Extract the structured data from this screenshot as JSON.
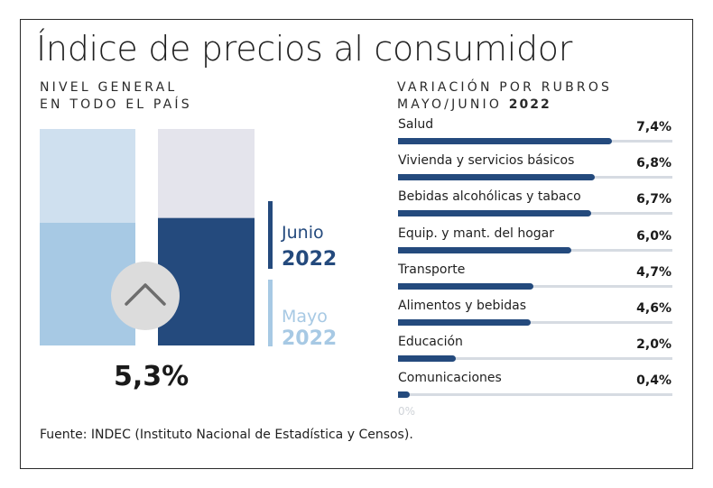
{
  "title": "Índice de precios al consumidor",
  "left_subtitle": [
    "NIVEL GENERAL",
    "EN TODO EL PAÍS"
  ],
  "right_subtitle": {
    "line1": "VARIACIÓN POR RUBROS",
    "line2_prefix": "MAYO/JUNIO",
    "line2_year": "2022"
  },
  "legend": {
    "junio": {
      "label": "Junio",
      "year": "2022"
    },
    "mayo": {
      "label": "Mayo",
      "year": "2022"
    }
  },
  "colors": {
    "dark": "#244a7d",
    "light": "#a7c9e4",
    "pale_dark": "#e4e4ec",
    "pale_light": "#cfe0ef",
    "track": "#d6dbe2"
  },
  "icon": "chevron-up-icon",
  "chart_data": [
    {
      "type": "bar",
      "categories": [
        "Mayo 2022",
        "Junio 2022"
      ],
      "values": [
        5.1,
        5.3
      ],
      "ylim": [
        0,
        9
      ],
      "display_value": "5,3%"
    },
    {
      "type": "bar",
      "orientation": "horizontal",
      "categories": [
        "Salud",
        "Vivienda y servicios básicos",
        "Bebidas alcohólicas y tabaco",
        "Equip. y mant. del hogar",
        "Transporte",
        "Alimentos y bebidas",
        "Educación",
        "Comunicaciones"
      ],
      "values": [
        7.4,
        6.8,
        6.7,
        6.0,
        4.7,
        4.6,
        2.0,
        0.4
      ],
      "value_labels": [
        "7,4%",
        "6,8%",
        "6,7%",
        "6,0%",
        "4,7%",
        "4,6%",
        "2,0%",
        "0,4%"
      ],
      "xlim": [
        0,
        9.5
      ],
      "axis_min_label": "0%"
    }
  ],
  "source": "Fuente: INDEC (Instituto Nacional de Estadística y Censos)."
}
